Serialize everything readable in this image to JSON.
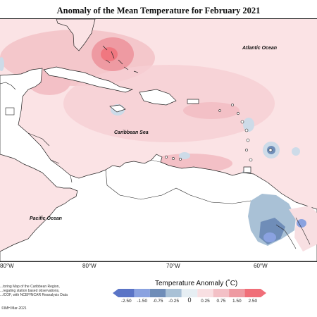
{
  "title": "Anomaly of the Mean Temperature for February 2021",
  "map": {
    "labels": {
      "atlantic": "Atlantic Ocean",
      "caribbean": "Caribbean Sea",
      "pacific": "Pacific Ocean"
    },
    "longitude_ticks": [
      "80°W",
      "80°W",
      "70°W",
      "60°W"
    ]
  },
  "legend": {
    "title": "Temperature Anomaly (˚C)",
    "ticks": [
      "-2.50",
      "-1.50",
      "-0.75",
      "-0.25",
      "0",
      "0.25",
      "0.75",
      "1.50",
      "2.50"
    ],
    "colors": [
      "#5a74c6",
      "#8aa2e0",
      "#6f8db8",
      "#a9c1d6",
      "#e6eef3",
      "#f8dfe2",
      "#f3c0c6",
      "#ee9aa2",
      "#f06e78"
    ]
  },
  "credit": {
    "lines": [
      "...toring Map of the Caribbean Region,",
      "...regating station based observations,",
      "...ICOF, with NCEP/NCAR Reanalysis Data"
    ],
    "copyright": "©IMH Mar-2021"
  },
  "colors": {
    "warm_light": "#f9dfe2",
    "warm_mid": "#f3c3c8",
    "warm_strong": "#ee9aa2",
    "cool_light": "#cddbe8",
    "cool_mid": "#7e9bc8",
    "land": "#ffffff",
    "outline": "#222222"
  }
}
